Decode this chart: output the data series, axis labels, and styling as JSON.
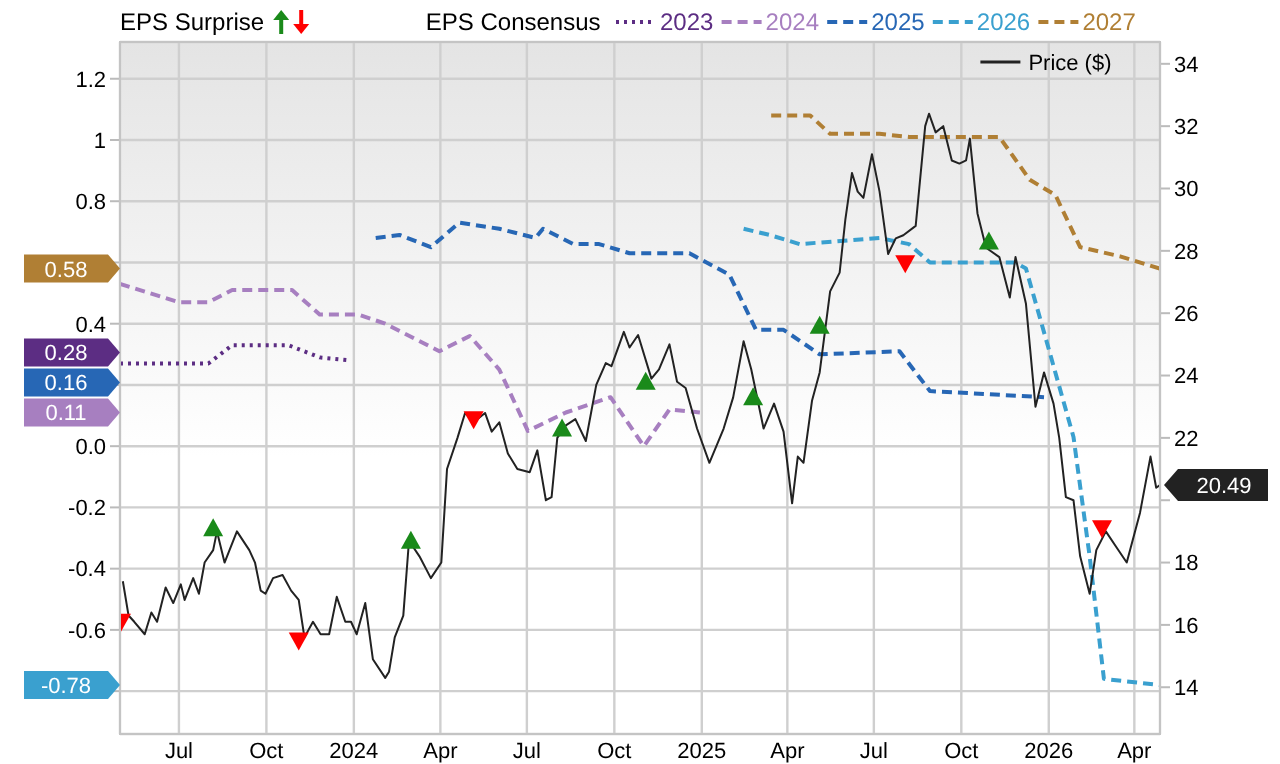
{
  "chart_data": {
    "type": "line",
    "annotations": [
      "EPS Surprise",
      "0.58",
      "0.28",
      "0.16",
      "0.11",
      "-0.78"
    ],
    "legend_title": "EPS Consensus",
    "legend": "top",
    "grid": true,
    "marker": "none",
    "xlim": [
      "2023-04-30",
      "2026-04-28"
    ],
    "xticks": [
      {
        "value": "2023-07-01",
        "label": "Jul"
      },
      {
        "value": "2023-10-01",
        "label": "Oct"
      },
      {
        "value": "2024-01-01",
        "label": "2024"
      },
      {
        "value": "2024-04-01",
        "label": "Apr"
      },
      {
        "value": "2024-07-01",
        "label": "Jul"
      },
      {
        "value": "2024-10-01",
        "label": "Oct"
      },
      {
        "value": "2025-01-01",
        "label": "2025"
      },
      {
        "value": "2025-04-01",
        "label": "Apr"
      },
      {
        "value": "2025-07-01",
        "label": "Jul"
      },
      {
        "value": "2025-10-01",
        "label": "Oct"
      },
      {
        "value": "2026-01-01",
        "label": "2026"
      },
      {
        "value": "2026-04-01",
        "label": "Apr"
      }
    ],
    "ylim": [
      -0.94,
      1.32
    ],
    "yticks": [
      {
        "value": -0.8,
        "label": null
      },
      -0.6,
      -0.4,
      -0.2,
      {
        "value": 0,
        "label": "0.0"
      },
      {
        "value": 0.2,
        "label": null
      },
      0.4,
      {
        "value": 0.6,
        "label": null
      },
      0.8,
      1,
      1.2
    ],
    "y2lim": [
      12.5,
      34.7
    ],
    "y2ticks": [
      14,
      16,
      18,
      {
        "value": 20,
        "label": null
      },
      22,
      24,
      26,
      28,
      30,
      32,
      34
    ],
    "series": [
      {
        "name": "2023",
        "color": "#5c2d83",
        "line_style": "dotted",
        "x": [
          "2023-04-30",
          "2023-08-01",
          "2023-08-26",
          "2023-10-24",
          "2023-11-26",
          "2023-12-29"
        ],
        "values": [
          0.27,
          0.27,
          0.33,
          0.33,
          0.29,
          0.28
        ]
      },
      {
        "name": "2024",
        "color": "#a77fc0",
        "line_style": "dashed",
        "x": [
          "2023-04-30",
          "2023-07-01",
          "2023-08-01",
          "2023-08-26",
          "2023-10-28",
          "2023-11-26",
          "2024-01-06",
          "2024-02-03",
          "2024-03-31",
          "2024-05-02",
          "2024-06-02",
          "2024-07-02",
          "2024-08-11",
          "2024-09-27",
          "2024-11-01",
          "2024-11-28",
          "2024-12-30"
        ],
        "values": [
          0.53,
          0.47,
          0.47,
          0.51,
          0.51,
          0.43,
          0.43,
          0.4,
          0.31,
          0.36,
          0.25,
          0.05,
          0.11,
          0.16,
          0.0,
          0.12,
          0.11
        ]
      },
      {
        "name": "2025",
        "color": "#2767b5",
        "line_style": "dashed",
        "x": [
          "2024-01-24",
          "2024-02-18",
          "2024-03-22",
          "2024-04-21",
          "2024-06-02",
          "2024-07-10",
          "2024-07-18",
          "2024-08-19",
          "2024-09-15",
          "2024-10-17",
          "2024-12-19",
          "2025-01-30",
          "2025-02-27",
          "2025-03-28",
          "2025-05-05",
          "2025-07-28",
          "2025-08-29",
          "2025-12-27"
        ],
        "values": [
          0.68,
          0.69,
          0.65,
          0.73,
          0.71,
          0.68,
          0.71,
          0.66,
          0.66,
          0.63,
          0.63,
          0.56,
          0.38,
          0.38,
          0.3,
          0.31,
          0.18,
          0.16
        ]
      },
      {
        "name": "2026",
        "color": "#3aa0cf",
        "line_style": "dashed",
        "x": [
          "2025-02-14",
          "2025-03-13",
          "2025-04-14",
          "2025-07-07",
          "2025-08-07",
          "2025-08-29",
          "2025-11-27",
          "2025-12-08",
          "2025-12-29",
          "2026-01-27",
          "2026-02-13",
          "2026-02-28",
          "2026-04-28"
        ],
        "values": [
          0.71,
          0.69,
          0.66,
          0.68,
          0.66,
          0.6,
          0.6,
          0.58,
          0.35,
          0.03,
          -0.36,
          -0.76,
          -0.78
        ]
      },
      {
        "name": "2027",
        "color": "#b07f34",
        "line_style": "dashed",
        "x": [
          "2025-03-15",
          "2025-04-25",
          "2025-05-16",
          "2025-07-07",
          "2025-08-07",
          "2025-11-10",
          "2025-12-12",
          "2026-01-08",
          "2026-02-03",
          "2026-03-17",
          "2026-04-28"
        ],
        "values": [
          1.08,
          1.08,
          1.02,
          1.02,
          1.01,
          1.01,
          0.87,
          0.82,
          0.65,
          0.62,
          0.58
        ]
      },
      {
        "name": "Price ($)",
        "color": "#222222",
        "axis": "y2",
        "line_style": "solid",
        "x": [
          "2023-05-03",
          "2023-05-09",
          "2023-05-15",
          "2023-05-26",
          "2023-06-02",
          "2023-06-08",
          "2023-06-17",
          "2023-06-25",
          "2023-07-03",
          "2023-07-07",
          "2023-07-16",
          "2023-07-22",
          "2023-07-28",
          "2023-08-06",
          "2023-08-10",
          "2023-08-18",
          "2023-08-31",
          "2023-09-13",
          "2023-09-19",
          "2023-09-25",
          "2023-09-30",
          "2023-10-08",
          "2023-10-18",
          "2023-10-27",
          "2023-11-04",
          "2023-11-10",
          "2023-11-19",
          "2023-11-27",
          "2023-12-06",
          "2023-12-14",
          "2023-12-23",
          "2023-12-29",
          "2024-01-04",
          "2024-01-13",
          "2024-01-21",
          "2024-02-03",
          "2024-02-07",
          "2024-02-13",
          "2024-02-22",
          "2024-02-28",
          "2024-03-10",
          "2024-03-22",
          "2024-04-02",
          "2024-04-08",
          "2024-04-19",
          "2024-04-27",
          "2024-05-06",
          "2024-05-18",
          "2024-05-25",
          "2024-06-02",
          "2024-06-11",
          "2024-06-21",
          "2024-07-04",
          "2024-07-12",
          "2024-07-21",
          "2024-07-27",
          "2024-08-02",
          "2024-08-11",
          "2024-08-21",
          "2024-09-01",
          "2024-09-12",
          "2024-09-22",
          "2024-09-28",
          "2024-10-11",
          "2024-10-17",
          "2024-10-26",
          "2024-11-09",
          "2024-11-17",
          "2024-11-28",
          "2024-12-06",
          "2024-12-15",
          "2024-12-27",
          "2025-01-09",
          "2025-01-24",
          "2025-02-03",
          "2025-02-14",
          "2025-02-22",
          "2025-03-07",
          "2025-03-18",
          "2025-03-28",
          "2025-04-06",
          "2025-04-12",
          "2025-04-18",
          "2025-04-27",
          "2025-05-05",
          "2025-05-16",
          "2025-05-26",
          "2025-06-01",
          "2025-06-08",
          "2025-06-14",
          "2025-06-20",
          "2025-06-29",
          "2025-07-07",
          "2025-07-16",
          "2025-07-24",
          "2025-08-01",
          "2025-08-14",
          "2025-08-24",
          "2025-08-28",
          "2025-09-04",
          "2025-09-12",
          "2025-09-21",
          "2025-09-29",
          "2025-10-06",
          "2025-10-10",
          "2025-10-18",
          "2025-10-27",
          "2025-11-10",
          "2025-11-21",
          "2025-11-27",
          "2025-12-08",
          "2025-12-18",
          "2025-12-27",
          "2026-01-06",
          "2026-01-12",
          "2026-01-19",
          "2026-01-27",
          "2026-02-03",
          "2026-02-13",
          "2026-02-20",
          "2026-03-02",
          "2026-03-13",
          "2026-03-24",
          "2026-04-07",
          "2026-04-18",
          "2026-04-24",
          "2026-04-28"
        ],
        "values": [
          17.4,
          16.3,
          16.1,
          15.7,
          16.4,
          16.1,
          17.2,
          16.7,
          17.3,
          16.8,
          17.5,
          17.0,
          18.0,
          18.4,
          19.0,
          18.0,
          19.0,
          18.4,
          18.0,
          17.1,
          17.0,
          17.5,
          17.6,
          17.1,
          16.8,
          15.6,
          16.1,
          15.7,
          15.7,
          16.9,
          16.1,
          16.1,
          15.7,
          16.7,
          14.9,
          14.3,
          14.5,
          15.6,
          16.3,
          18.7,
          18.2,
          17.5,
          18.0,
          21.0,
          22.0,
          22.8,
          22.5,
          22.8,
          22.2,
          22.5,
          21.5,
          21.0,
          20.9,
          21.6,
          20.0,
          20.1,
          22.0,
          22.4,
          22.6,
          21.9,
          23.7,
          24.4,
          24.3,
          25.4,
          24.9,
          25.3,
          23.9,
          24.2,
          25.0,
          23.8,
          23.6,
          22.3,
          21.2,
          22.3,
          23.3,
          25.1,
          24.2,
          22.3,
          23.1,
          22.2,
          19.9,
          21.4,
          21.2,
          23.2,
          24.1,
          26.7,
          27.3,
          29.0,
          30.5,
          29.9,
          29.7,
          31.1,
          29.9,
          27.9,
          28.4,
          28.5,
          28.8,
          32.0,
          32.4,
          31.8,
          32.0,
          30.9,
          30.8,
          30.9,
          31.6,
          29.2,
          28.1,
          27.8,
          26.5,
          27.8,
          26.3,
          23.0,
          24.1,
          23.1,
          22.0,
          20.1,
          20.0,
          18.2,
          17.0,
          18.4,
          19.0,
          18.5,
          18.0,
          19.6,
          21.4,
          20.4,
          20.49
        ],
        "value_labels": [
          null,
          null,
          null,
          null,
          null,
          null,
          null,
          null,
          null,
          null,
          null,
          null,
          null,
          null,
          null,
          null,
          null,
          null,
          null,
          null,
          null,
          null,
          null,
          null,
          null,
          null,
          null,
          null,
          null,
          null,
          null,
          null,
          null,
          null,
          null,
          null,
          null,
          null,
          null,
          null,
          null,
          null,
          null,
          null,
          null,
          null,
          null,
          null,
          null,
          null,
          null,
          null,
          null,
          null,
          null,
          null,
          null,
          null,
          null,
          null,
          null,
          null,
          null,
          null,
          null,
          null,
          null,
          null,
          null,
          null,
          null,
          null,
          null,
          null,
          null,
          null,
          null,
          null,
          null,
          null,
          null,
          null,
          null,
          null,
          null,
          null,
          null,
          null,
          null,
          null,
          null,
          null,
          null,
          null,
          null,
          null,
          null,
          null,
          null,
          null,
          null,
          null,
          null,
          null,
          null,
          null,
          null,
          null,
          null,
          null,
          null,
          null,
          null,
          null,
          null,
          null,
          null,
          null,
          null,
          null,
          null,
          null,
          null,
          null,
          null,
          null,
          "20.49"
        ]
      },
      {
        "type": "scatter",
        "marker": "triangle",
        "color": "#1a8a1a",
        "axis": "y2",
        "x": [
          "2023-08-06",
          "2024-03-01",
          "2024-08-07",
          "2024-11-03",
          "2025-02-24",
          "2025-05-05",
          "2025-10-30"
        ],
        "values": [
          19.1,
          18.7,
          22.3,
          23.8,
          23.3,
          25.6,
          28.3
        ]
      },
      {
        "type": "scatter",
        "marker": "triangle",
        "color": "#ff0000",
        "axis": "y2",
        "x": [
          "2023-05-01",
          "2023-11-04",
          "2024-05-06",
          "2025-08-03",
          "2026-02-26"
        ],
        "values": [
          16.1,
          15.5,
          22.6,
          27.6,
          19.1
        ]
      }
    ]
  }
}
